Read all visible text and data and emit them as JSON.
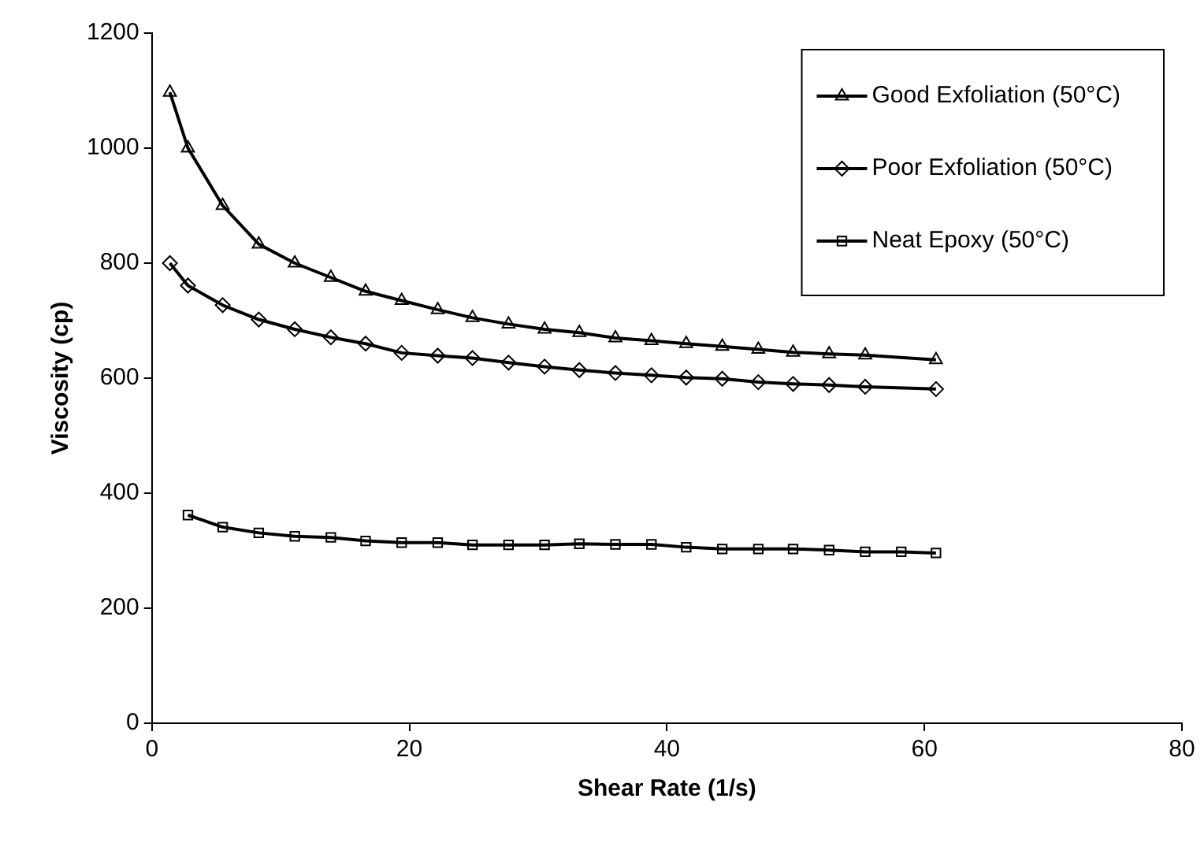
{
  "chart_data": {
    "type": "line",
    "xlabel": "Shear Rate (1/s)",
    "ylabel": "Viscosity (cp)",
    "xlim": [
      0,
      80
    ],
    "xticks": [
      0,
      20,
      40,
      60,
      80
    ],
    "ylim": [
      0,
      1200
    ],
    "yticks": [
      0,
      200,
      400,
      600,
      800,
      1000,
      1200
    ],
    "grid": false,
    "legend": "top right",
    "line_style": "solid",
    "series": [
      {
        "name": "Good Exfoliation (50°C)",
        "color": "#000000",
        "marker": "triangle",
        "x": [
          1.4,
          2.8,
          5.5,
          8.3,
          11.1,
          13.9,
          16.6,
          19.4,
          22.2,
          24.9,
          27.7,
          30.5,
          33.2,
          36.0,
          38.8,
          41.5,
          44.3,
          47.1,
          49.8,
          52.6,
          55.4,
          60.9
        ],
        "values": [
          1097,
          1000,
          900,
          833,
          800,
          775,
          751,
          735,
          719,
          705,
          694,
          685,
          679,
          670,
          665,
          660,
          655,
          650,
          645,
          642,
          640,
          632
        ]
      },
      {
        "name": "Poor Exfoliation (50°C)",
        "color": "#000000",
        "marker": "diamond",
        "x": [
          1.4,
          2.8,
          5.5,
          8.3,
          11.1,
          13.9,
          16.6,
          19.4,
          22.2,
          24.9,
          27.7,
          30.5,
          33.2,
          36.0,
          38.8,
          41.5,
          44.3,
          47.1,
          49.8,
          52.6,
          55.4,
          60.9
        ],
        "values": [
          800,
          761,
          727,
          702,
          685,
          671,
          660,
          644,
          639,
          635,
          627,
          620,
          614,
          609,
          605,
          601,
          599,
          593,
          590,
          588,
          585,
          581
        ]
      },
      {
        "name": "Neat Epoxy (50°C)",
        "color": "#000000",
        "marker": "square",
        "x": [
          2.8,
          5.5,
          8.3,
          11.1,
          13.9,
          16.6,
          19.4,
          22.2,
          24.9,
          27.7,
          30.5,
          33.2,
          36.0,
          38.8,
          41.5,
          44.3,
          47.1,
          49.8,
          52.6,
          55.4,
          58.2,
          60.9
        ],
        "values": [
          362,
          341,
          331,
          325,
          323,
          317,
          314,
          314,
          310,
          310,
          310,
          312,
          311,
          311,
          306,
          303,
          303,
          303,
          301,
          298,
          298,
          296
        ]
      }
    ]
  }
}
